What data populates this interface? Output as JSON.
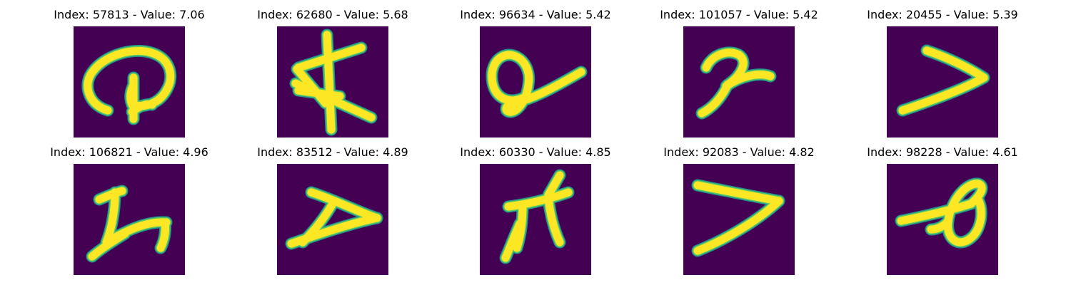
{
  "colors": {
    "background": "#440154",
    "edge": "#21918c",
    "mid": "#5ec962",
    "stroke": "#fde725"
  },
  "panels": [
    {
      "title": "Index: 57813 - Value: 7.06",
      "glyph": "glyph-a"
    },
    {
      "title": "Index: 62680 - Value: 5.68",
      "glyph": "glyph-b"
    },
    {
      "title": "Index: 96634 - Value: 5.42",
      "glyph": "glyph-c"
    },
    {
      "title": "Index: 101057 - Value: 5.42",
      "glyph": "glyph-d"
    },
    {
      "title": "Index: 20455 - Value: 5.39",
      "glyph": "glyph-e"
    },
    {
      "title": "Index: 106821 - Value: 4.96",
      "glyph": "glyph-f"
    },
    {
      "title": "Index: 83512 - Value: 4.89",
      "glyph": "glyph-g"
    },
    {
      "title": "Index: 60330 - Value: 4.85",
      "glyph": "glyph-h"
    },
    {
      "title": "Index: 92083 - Value: 4.82",
      "glyph": "glyph-i"
    },
    {
      "title": "Index: 98228 - Value: 4.61",
      "glyph": "glyph-j"
    }
  ]
}
